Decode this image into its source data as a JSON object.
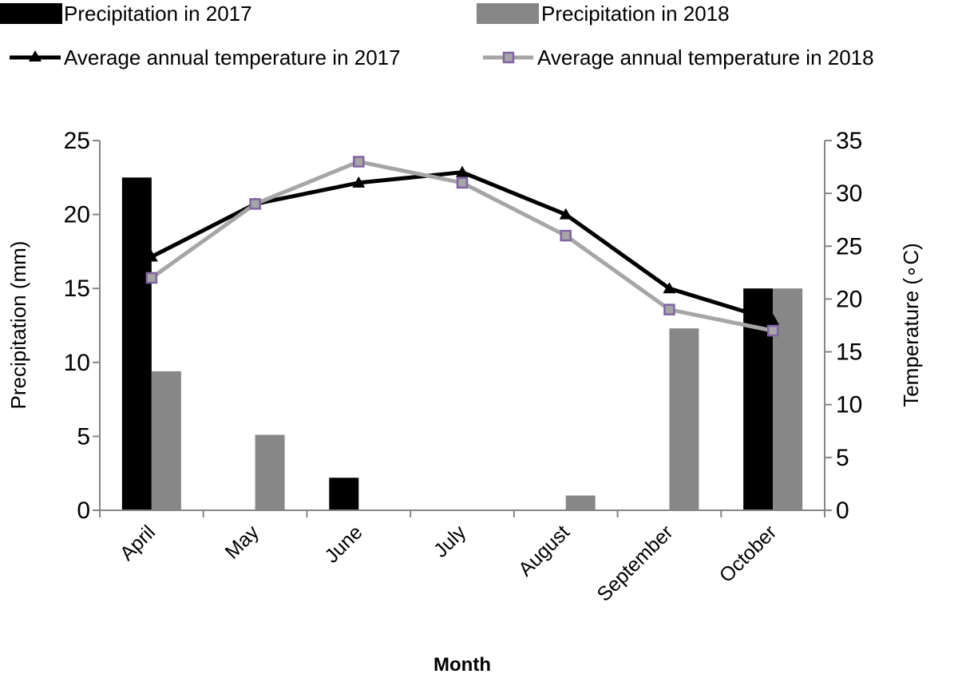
{
  "chart_data": {
    "type": "bar",
    "xlabel": "Month",
    "ylabel": "Precipitation (mm)",
    "y2label": "Temperature (∘C)",
    "ylim": [
      0,
      25
    ],
    "y2lim": [
      0,
      35
    ],
    "yticks": [
      "0",
      "5",
      "10",
      "15",
      "20",
      "25"
    ],
    "y2ticks": [
      "0",
      "5",
      "10",
      "15",
      "20",
      "25",
      "30",
      "35"
    ],
    "grid": false,
    "legend_position": "top",
    "categories": [
      "April",
      "May",
      "June",
      "July",
      "August",
      "September",
      "October"
    ],
    "bar_series": [
      {
        "name": "Precipitation in 2017",
        "color": "#000000",
        "axis": "left",
        "values": [
          22.5,
          0,
          2.2,
          0,
          0,
          0,
          15
        ]
      },
      {
        "name": "Precipitation in 2018",
        "color": "#878787",
        "axis": "left",
        "values": [
          9.4,
          5.1,
          0,
          0,
          1.0,
          12.3,
          15
        ]
      }
    ],
    "line_series": [
      {
        "name": "Average annual temperature in 2017",
        "color": "#000000",
        "marker": "triangle",
        "axis": "right",
        "values": [
          24,
          29,
          31,
          32,
          28,
          21,
          18
        ]
      },
      {
        "name": "Average annual temperature in 2018",
        "color": "#a6a6a6",
        "marker": "square",
        "marker_color": "#8064a2",
        "axis": "right",
        "values": [
          22,
          29,
          33,
          31,
          26,
          19,
          17
        ]
      }
    ]
  }
}
